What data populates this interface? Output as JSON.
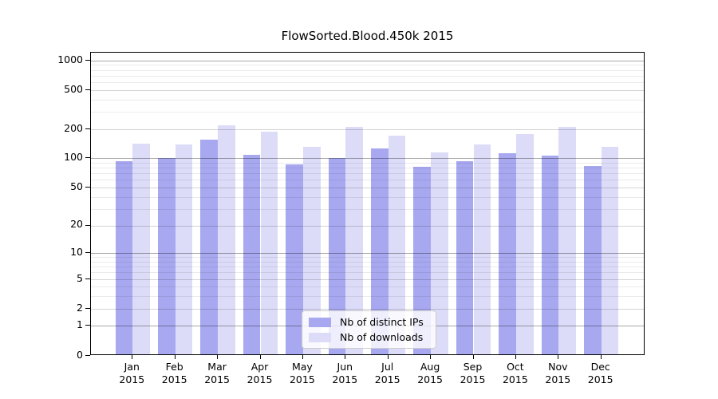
{
  "chart_data": {
    "type": "bar",
    "title": "FlowSorted.Blood.450k 2015",
    "categories": [
      "Jan",
      "Feb",
      "Mar",
      "Apr",
      "May",
      "Jun",
      "Jul",
      "Aug",
      "Sep",
      "Oct",
      "Nov",
      "Dec"
    ],
    "year": "2015",
    "series": [
      {
        "name": "Nb of distinct IPs",
        "color": "#a8a8f0",
        "values": [
          91,
          98,
          150,
          106,
          84,
          98,
          122,
          80,
          90,
          110,
          104,
          81
        ]
      },
      {
        "name": "Nb of downloads",
        "color": "#dcdcf9",
        "values": [
          137,
          135,
          212,
          183,
          127,
          204,
          165,
          111,
          134,
          172,
          204,
          127
        ]
      }
    ],
    "yticks": [
      0,
      1,
      2,
      5,
      10,
      20,
      50,
      100,
      200,
      500,
      1000
    ],
    "y_scale": "log1p",
    "ylim": [
      0,
      1185
    ],
    "grid": true,
    "legend_position": "bottom-center",
    "colors": {
      "bar_dark": "#a8a8f0",
      "bar_light": "#dcdcf9",
      "grid_major": "#ababab",
      "grid_mid": "#d6d6d6",
      "grid_minor": "#ebebeb"
    }
  }
}
